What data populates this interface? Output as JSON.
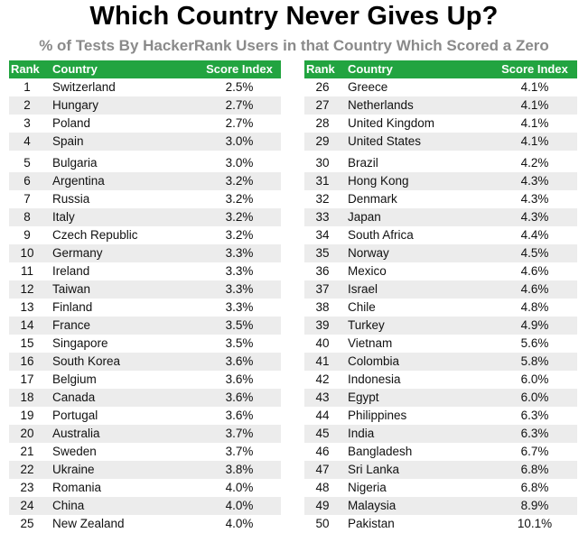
{
  "title": "Which Country Never Gives Up?",
  "subtitle": "% of Tests By HackerRank Users in that Country Which Scored a Zero",
  "colors": {
    "header_bg": "#22a440",
    "alt_row": "#ececec",
    "subtitle": "#8a8a8a"
  },
  "chart_data": {
    "type": "table",
    "columns": [
      "Rank",
      "Country",
      "Score Index"
    ],
    "left_rows": [
      [
        "1",
        "Switzerland",
        "2.5%"
      ],
      [
        "2",
        "Hungary",
        "2.7%"
      ],
      [
        "3",
        "Poland",
        "2.7%"
      ],
      [
        "4",
        "Spain",
        "3.0%"
      ],
      [
        "5",
        "Bulgaria",
        "3.0%"
      ],
      [
        "6",
        "Argentina",
        "3.2%"
      ],
      [
        "7",
        "Russia",
        "3.2%"
      ],
      [
        "8",
        "Italy",
        "3.2%"
      ],
      [
        "9",
        "Czech Republic",
        "3.2%"
      ],
      [
        "10",
        "Germany",
        "3.3%"
      ],
      [
        "11",
        "Ireland",
        "3.3%"
      ],
      [
        "12",
        "Taiwan",
        "3.3%"
      ],
      [
        "13",
        "Finland",
        "3.3%"
      ],
      [
        "14",
        "France",
        "3.5%"
      ],
      [
        "15",
        "Singapore",
        "3.5%"
      ],
      [
        "16",
        "South Korea",
        "3.6%"
      ],
      [
        "17",
        "Belgium",
        "3.6%"
      ],
      [
        "18",
        "Canada",
        "3.6%"
      ],
      [
        "19",
        "Portugal",
        "3.6%"
      ],
      [
        "20",
        "Australia",
        "3.7%"
      ],
      [
        "21",
        "Sweden",
        "3.7%"
      ],
      [
        "22",
        "Ukraine",
        "3.8%"
      ],
      [
        "23",
        "Romania",
        "4.0%"
      ],
      [
        "24",
        "China",
        "4.0%"
      ],
      [
        "25",
        "New Zealand",
        "4.0%"
      ]
    ],
    "right_rows": [
      [
        "26",
        "Greece",
        "4.1%"
      ],
      [
        "27",
        "Netherlands",
        "4.1%"
      ],
      [
        "28",
        "United Kingdom",
        "4.1%"
      ],
      [
        "29",
        "United States",
        "4.1%"
      ],
      [
        "30",
        "Brazil",
        "4.2%"
      ],
      [
        "31",
        "Hong Kong",
        "4.3%"
      ],
      [
        "32",
        "Denmark",
        "4.3%"
      ],
      [
        "33",
        "Japan",
        "4.3%"
      ],
      [
        "34",
        "South Africa",
        "4.4%"
      ],
      [
        "35",
        "Norway",
        "4.5%"
      ],
      [
        "36",
        "Mexico",
        "4.6%"
      ],
      [
        "37",
        "Israel",
        "4.6%"
      ],
      [
        "38",
        "Chile",
        "4.8%"
      ],
      [
        "39",
        "Turkey",
        "4.9%"
      ],
      [
        "40",
        "Vietnam",
        "5.6%"
      ],
      [
        "41",
        "Colombia",
        "5.8%"
      ],
      [
        "42",
        "Indonesia",
        "6.0%"
      ],
      [
        "43",
        "Egypt",
        "6.0%"
      ],
      [
        "44",
        "Philippines",
        "6.3%"
      ],
      [
        "45",
        "India",
        "6.3%"
      ],
      [
        "46",
        "Bangladesh",
        "6.7%"
      ],
      [
        "47",
        "Sri Lanka",
        "6.8%"
      ],
      [
        "48",
        "Nigeria",
        "6.8%"
      ],
      [
        "49",
        "Malaysia",
        "8.9%"
      ],
      [
        "50",
        "Pakistan",
        "10.1%"
      ]
    ]
  }
}
